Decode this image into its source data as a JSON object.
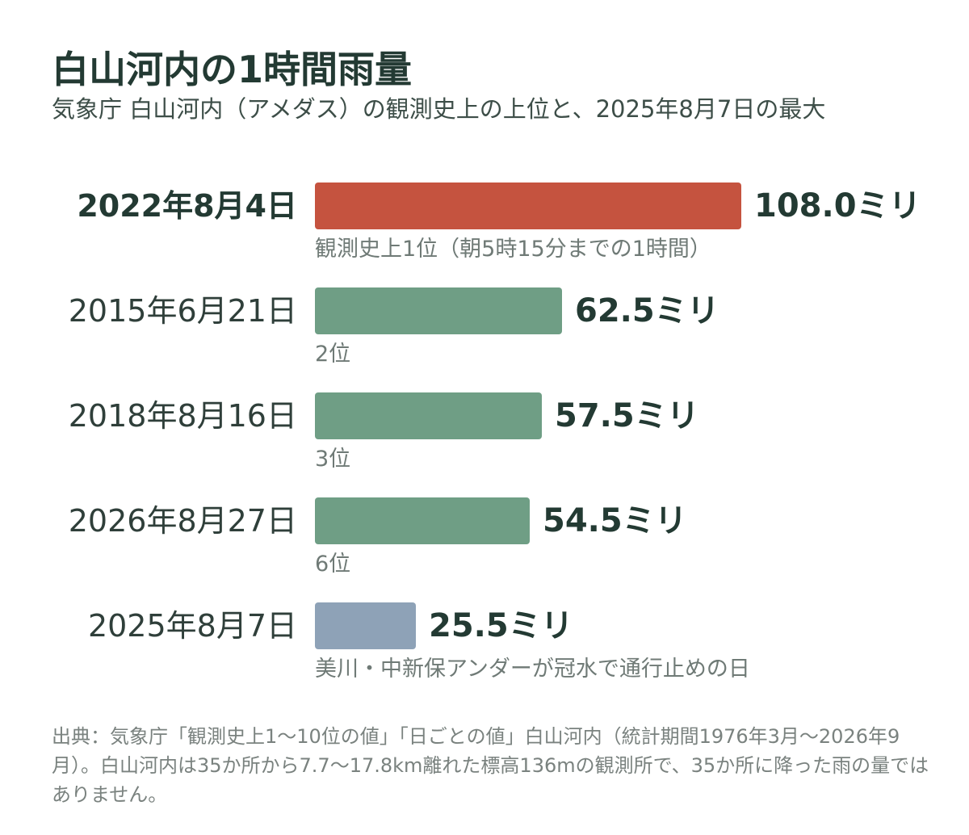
{
  "header": {
    "title": "白山河内の1時間雨量",
    "subtitle": "気象庁 白山河内（アメダス）の観測史上の上位と、2025年8月7日の最大"
  },
  "chart_data": {
    "type": "bar",
    "orientation": "horizontal",
    "title": "白山河内の1時間雨量",
    "categories": [
      "2022年8月4日",
      "2015年6月21日",
      "2018年8月16日",
      "2026年8月27日",
      "2025年8月7日"
    ],
    "values": [
      108.0,
      62.5,
      57.5,
      54.5,
      25.5
    ],
    "value_labels": [
      "108.0ミリ",
      "62.5ミリ",
      "57.5ミリ",
      "54.5ミリ",
      "25.5ミリ"
    ],
    "notes": [
      "観測史上1位（朝5時15分までの1時間）",
      "2位",
      "3位",
      "6位",
      "美川・中新保アンダーが冠水で通行止めの日"
    ],
    "bar_colors": [
      "#c5533f",
      "#6f9e85",
      "#6f9e85",
      "#6f9e85",
      "#8ea2b7"
    ],
    "bold_category": [
      true,
      false,
      false,
      false,
      false
    ],
    "xlim": [
      0,
      108.0
    ],
    "grid": false,
    "legend": "none"
  },
  "footer": {
    "source": "出典：気象庁「観測史上1〜10位の値」「日ごとの値」白山河内（統計期間1976年3月〜2026年9月）。白山河内は35か所から7.7〜17.8km離れた標高136mの観測所で、35か所に降った雨の量ではありません。"
  }
}
